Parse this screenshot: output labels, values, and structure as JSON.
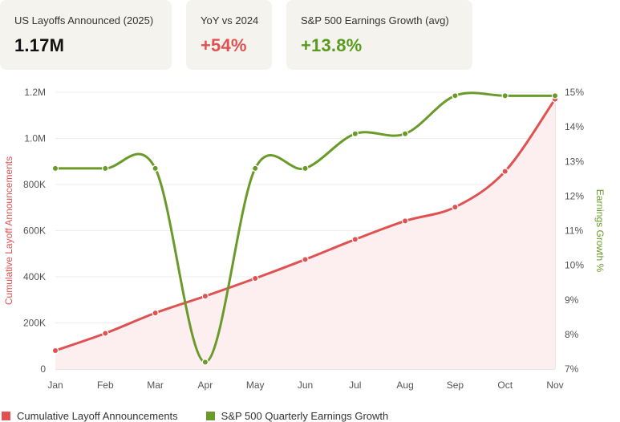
{
  "cards": [
    {
      "label": "US Layoffs Announced (2025)",
      "value": "1.17M",
      "color": "#111111"
    },
    {
      "label": "YoY vs 2024",
      "value": "+54%",
      "color": "#e05252"
    },
    {
      "label": "S&P 500 Earnings Growth (avg)",
      "value": "+13.8%",
      "color": "#5a9a1e"
    }
  ],
  "colors": {
    "layoffs": "#e05252",
    "layoffs_fill": "#fdeef0",
    "earnings": "#6a9a2a",
    "grid": "#ececec",
    "axis_text": "#555555"
  },
  "chart_data": {
    "type": "line",
    "categories": [
      "Jan",
      "Feb",
      "Mar",
      "Apr",
      "May",
      "Jun",
      "Jul",
      "Aug",
      "Sep",
      "Oct",
      "Nov"
    ],
    "series": [
      {
        "name": "Cumulative Layoff Announcements",
        "axis": "left",
        "values": [
          80000,
          155000,
          243000,
          316000,
          393000,
          475000,
          562000,
          642000,
          702000,
          857000,
          1170000
        ]
      },
      {
        "name": "S&P 500 Quarterly Earnings Growth",
        "axis": "right",
        "values": [
          12.8,
          12.8,
          12.8,
          7.2,
          12.8,
          12.8,
          13.8,
          13.8,
          14.9,
          14.9,
          14.9
        ]
      }
    ],
    "left_axis": {
      "label": "Cumulative Layoff Announcements",
      "min": 0,
      "max": 1200000,
      "ticks": [
        0,
        200000,
        400000,
        600000,
        800000,
        1000000,
        1200000
      ],
      "tick_labels": [
        "0",
        "200K",
        "400K",
        "600K",
        "800K",
        "1.0M",
        "1.2M"
      ]
    },
    "right_axis": {
      "label": "Earnings Growth %",
      "min": 7,
      "max": 15,
      "ticks": [
        7,
        8,
        9,
        10,
        11,
        12,
        13,
        14,
        15
      ],
      "tick_labels": [
        "7%",
        "8%",
        "9%",
        "10%",
        "11%",
        "12%",
        "13%",
        "14%",
        "15%"
      ]
    },
    "legend_position": "bottom-left",
    "grid": true
  }
}
